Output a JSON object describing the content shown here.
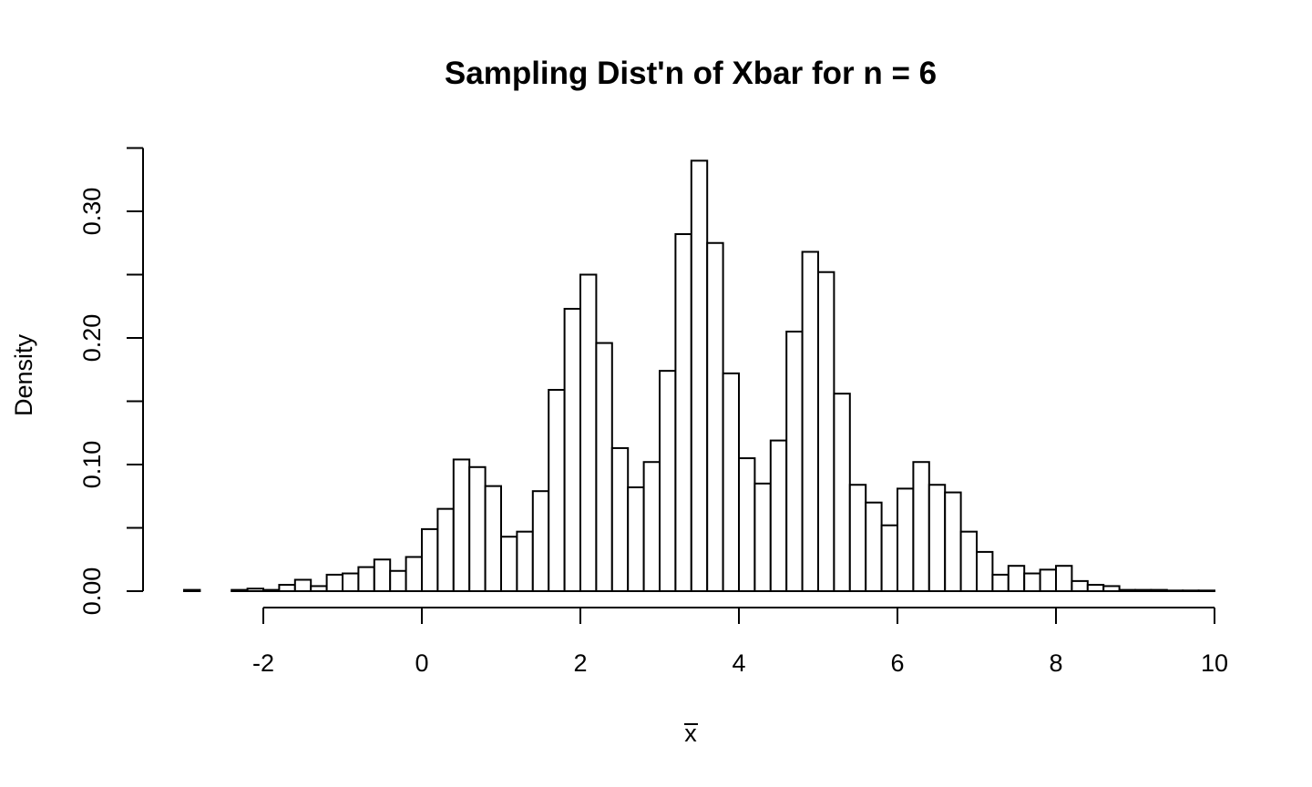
{
  "chart_data": {
    "type": "bar",
    "title": "Sampling Dist'n of Xbar for n = 6",
    "xlabel": "x",
    "ylabel": "Density",
    "xlim": [
      -3,
      10
    ],
    "ylim": [
      0,
      0.35
    ],
    "grid": false,
    "xticks": [
      -2,
      0,
      2,
      4,
      6,
      8,
      10
    ],
    "xtick_labels": [
      "-2",
      "0",
      "2",
      "4",
      "6",
      "8",
      "10"
    ],
    "yticks": [
      0,
      0.05,
      0.1,
      0.15,
      0.2,
      0.25,
      0.3,
      0.35
    ],
    "ytick_labels": [
      "0.00",
      "",
      "0.10",
      "",
      "0.20",
      "",
      "0.30",
      ""
    ],
    "bin_width": 0.2,
    "bin_start": -3.0,
    "values": [
      0.001,
      0,
      0,
      0.001,
      0.002,
      0.001,
      0.005,
      0.009,
      0.004,
      0.013,
      0.014,
      0.019,
      0.025,
      0.016,
      0.027,
      0.049,
      0.065,
      0.104,
      0.098,
      0.083,
      0.043,
      0.047,
      0.079,
      0.159,
      0.223,
      0.25,
      0.196,
      0.113,
      0.082,
      0.102,
      0.174,
      0.282,
      0.34,
      0.275,
      0.172,
      0.105,
      0.085,
      0.119,
      0.205,
      0.268,
      0.252,
      0.156,
      0.084,
      0.07,
      0.052,
      0.081,
      0.102,
      0.084,
      0.078,
      0.047,
      0.031,
      0.013,
      0.02,
      0.014,
      0.017,
      0.02,
      0.008,
      0.005,
      0.004,
      0.001,
      0.001,
      0.001,
      0.0005,
      0.0005,
      0.0005
    ]
  }
}
